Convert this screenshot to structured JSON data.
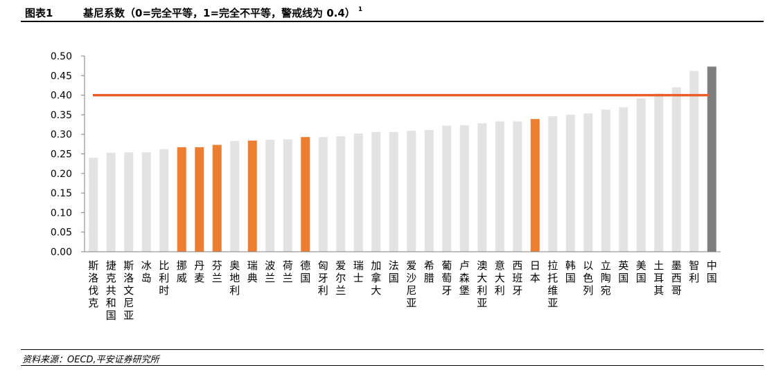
{
  "figure": {
    "number": "图表1",
    "title": "基尼系数（0=完全平等，1=完全不平等，警戒线为 0.4）",
    "note_marker": "1",
    "source": "资料来源：OECD,平安证券研究所"
  },
  "chart_data": {
    "type": "bar",
    "title": "基尼系数（0=完全平等，1=完全不平等，警戒线为 0.4）",
    "xlabel": "",
    "ylabel": "",
    "ylim": [
      0,
      0.5
    ],
    "yticks": [
      "0.00",
      "0.05",
      "0.10",
      "0.15",
      "0.20",
      "0.25",
      "0.30",
      "0.35",
      "0.40",
      "0.45",
      "0.50"
    ],
    "grid": false,
    "legend": "none",
    "categories": [
      "斯洛伐克",
      "捷克共和国",
      "斯洛文尼亚",
      "冰岛",
      "比利时",
      "挪威",
      "丹麦",
      "芬兰",
      "奥地利",
      "瑞典",
      "波兰",
      "荷兰",
      "德国",
      "匈牙利",
      "爱尔兰",
      "瑞士",
      "加拿大",
      "法国",
      "爱沙尼亚",
      "希腊",
      "葡萄牙",
      "卢森堡",
      "澳大利亚",
      "意大利",
      "西班牙",
      "日本",
      "拉托维亚",
      "韩国",
      "以色列",
      "立陶宛",
      "英国",
      "美国",
      "土耳其",
      "墨西哥",
      "智利",
      "中国"
    ],
    "values": [
      0.24,
      0.253,
      0.254,
      0.254,
      0.262,
      0.267,
      0.267,
      0.273,
      0.283,
      0.284,
      0.286,
      0.287,
      0.293,
      0.293,
      0.295,
      0.302,
      0.306,
      0.306,
      0.309,
      0.311,
      0.322,
      0.323,
      0.328,
      0.333,
      0.333,
      0.339,
      0.346,
      0.35,
      0.353,
      0.363,
      0.369,
      0.392,
      0.404,
      0.42,
      0.462,
      0.473
    ],
    "highlight": [
      "挪威",
      "丹麦",
      "芬兰",
      "瑞典",
      "德国",
      "日本"
    ],
    "colors": {
      "default": "#e3e3e3",
      "highlight": "#ed7d31",
      "china": "#7f7f7f",
      "warning_line": "#eb5c28"
    },
    "warning_line": {
      "value": 0.4
    }
  }
}
